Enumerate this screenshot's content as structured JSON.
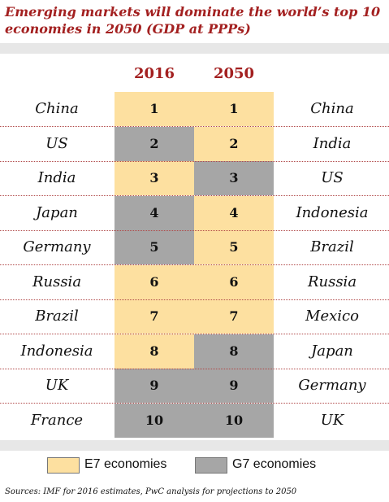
{
  "title": "Emerging markets will dominate the world’s top 10 economies in 2050 (GDP at PPPs)",
  "source": "Sources: IMF for 2016 estimates, PwC analysis for projections to 2050",
  "colors": {
    "title": "#a32020",
    "e7": "#fde0a0",
    "g7": "#a6a6a6",
    "separator": "#b04848"
  },
  "chart_data": {
    "type": "table",
    "columns": [
      "2016",
      "2050"
    ],
    "rows": [
      {
        "rank": "1",
        "country_2016": "China",
        "group_2016": "E7",
        "country_2050": "China",
        "group_2050": "E7"
      },
      {
        "rank": "2",
        "country_2016": "US",
        "group_2016": "G7",
        "country_2050": "India",
        "group_2050": "E7"
      },
      {
        "rank": "3",
        "country_2016": "India",
        "group_2016": "E7",
        "country_2050": "US",
        "group_2050": "G7"
      },
      {
        "rank": "4",
        "country_2016": "Japan",
        "group_2016": "G7",
        "country_2050": "Indonesia",
        "group_2050": "E7"
      },
      {
        "rank": "5",
        "country_2016": "Germany",
        "group_2016": "G7",
        "country_2050": "Brazil",
        "group_2050": "E7"
      },
      {
        "rank": "6",
        "country_2016": "Russia",
        "group_2016": "E7",
        "country_2050": "Russia",
        "group_2050": "E7"
      },
      {
        "rank": "7",
        "country_2016": "Brazil",
        "group_2016": "E7",
        "country_2050": "Mexico",
        "group_2050": "E7"
      },
      {
        "rank": "8",
        "country_2016": "Indonesia",
        "group_2016": "E7",
        "country_2050": "Japan",
        "group_2050": "G7"
      },
      {
        "rank": "9",
        "country_2016": "UK",
        "group_2016": "G7",
        "country_2050": "Germany",
        "group_2050": "G7"
      },
      {
        "rank": "10",
        "country_2016": "France",
        "group_2016": "G7",
        "country_2050": "UK",
        "group_2050": "G7"
      }
    ],
    "legend": [
      {
        "key": "E7",
        "label": "E7 economies"
      },
      {
        "key": "G7",
        "label": "G7 economies"
      }
    ]
  }
}
